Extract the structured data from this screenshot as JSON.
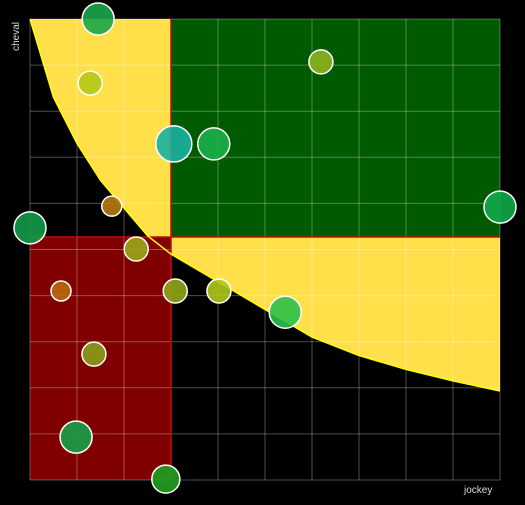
{
  "chart_data": {
    "type": "bubble",
    "x_label": "jockey",
    "y_label": "cheval",
    "xlim": [
      0,
      10
    ],
    "ylim": [
      0,
      10
    ],
    "xticks": [
      0,
      1,
      2,
      3,
      4,
      5,
      6,
      7,
      8,
      9,
      10
    ],
    "yticks": [
      0,
      1,
      2,
      3,
      4,
      5,
      6,
      7,
      8,
      9,
      10
    ],
    "grid": true,
    "x_threshold": 3,
    "y_threshold": 5.27,
    "low_color": "#800000",
    "high_color": "#005a00",
    "zone_color": "#ffe04a",
    "curve": {
      "x": [
        0,
        0.5,
        1,
        1.5,
        2,
        2.5,
        3,
        4,
        5,
        6,
        7,
        8,
        9,
        10
      ],
      "y": [
        10,
        8.3,
        7.3,
        6.5,
        5.9,
        5.3,
        4.9,
        4.3,
        3.7,
        3.1,
        2.7,
        2.4,
        2.15,
        1.93
      ]
    },
    "points": {
      "x": [
        1.45,
        1.28,
        6.19,
        3.06,
        3.91,
        1.74,
        10,
        0,
        2.26,
        0.66,
        3.09,
        4.02,
        5.43,
        1.36,
        0.98,
        2.89
      ],
      "y": [
        10.0,
        8.61,
        9.07,
        7.29,
        7.29,
        5.94,
        5.92,
        5.47,
        5.01,
        4.1,
        4.1,
        4.1,
        3.64,
        2.73,
        0.93,
        0.02
      ],
      "size": [
        16,
        12,
        12,
        18,
        16,
        10,
        16,
        16,
        12,
        10,
        12,
        12,
        16,
        12,
        16,
        14
      ],
      "colors": [
        "#1aa64a",
        "#b5c81a",
        "#8db21e",
        "#1ab0a0",
        "#1ab04a",
        "#b87a10",
        "#10a84a",
        "#129a48",
        "#9aa618",
        "#b86a10",
        "#8fa616",
        "#b0c81a",
        "#2cc04a",
        "#8a9e18",
        "#18a048",
        "#20a020"
      ]
    }
  }
}
